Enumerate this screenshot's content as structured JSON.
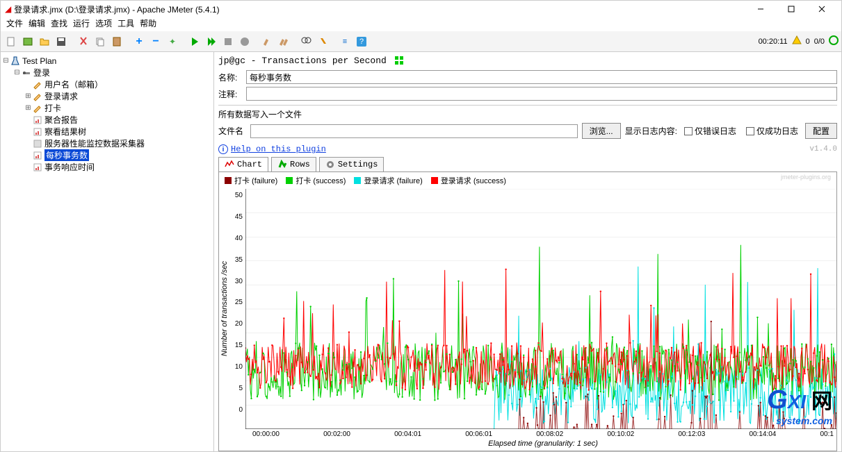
{
  "window": {
    "title": "登录请求.jmx (D:\\登录请求.jmx) - Apache JMeter (5.4.1)"
  },
  "menu": [
    "文件",
    "编辑",
    "查找",
    "运行",
    "选项",
    "工具",
    "帮助"
  ],
  "toolbar": {
    "timer": "00:20:11",
    "warn_count": "0",
    "status": "0/0"
  },
  "tree": {
    "items": [
      {
        "depth": 0,
        "toggle": "⊟",
        "icon": "flask",
        "label": "Test Plan"
      },
      {
        "depth": 1,
        "toggle": "⊟",
        "icon": "step",
        "label": "登录"
      },
      {
        "depth": 2,
        "toggle": "",
        "icon": "pencil",
        "label": "用户名（邮箱）"
      },
      {
        "depth": 2,
        "toggle": "⊞",
        "icon": "pencil",
        "label": "登录请求"
      },
      {
        "depth": 2,
        "toggle": "⊞",
        "icon": "pencil",
        "label": "打卡"
      },
      {
        "depth": 2,
        "toggle": "",
        "icon": "report",
        "label": "聚合报告"
      },
      {
        "depth": 2,
        "toggle": "",
        "icon": "report",
        "label": "察看结果树"
      },
      {
        "depth": 2,
        "toggle": "",
        "icon": "grey",
        "label": "服务器性能监控数据采集器"
      },
      {
        "depth": 2,
        "toggle": "",
        "icon": "report",
        "label": "每秒事务数",
        "selected": true
      },
      {
        "depth": 2,
        "toggle": "",
        "icon": "report",
        "label": "事务响应时间"
      }
    ]
  },
  "main": {
    "header": "jp@gc - Transactions per Second",
    "name_label": "名称:",
    "name_value": "每秒事务数",
    "comment_label": "注释:",
    "comment_value": "",
    "file_section_title": "所有数据写入一个文件",
    "file_label": "文件名",
    "file_value": "",
    "browse_btn": "浏览...",
    "show_log_label": "显示日志内容:",
    "only_error": "仅错误日志",
    "only_success": "仅成功日志",
    "config_btn": "配置",
    "help_link": "Help on this plugin",
    "version": "v1.4.0",
    "tabs": {
      "chart": "Chart",
      "rows": "Rows",
      "settings": "Settings"
    }
  },
  "chart": {
    "legend": [
      {
        "color": "#8B0000",
        "label": "打卡 (failure)"
      },
      {
        "color": "#00D000",
        "label": "打卡 (success)"
      },
      {
        "color": "#00E0E0",
        "label": "登录请求 (failure)"
      },
      {
        "color": "#FF0000",
        "label": "登录请求 (success)"
      }
    ],
    "watermark": "jmeter-plugins.org",
    "y_label": "Number of transactions /sec",
    "x_label": "Elapsed time (granularity: 1 sec)",
    "y_ticks": [
      "50",
      "45",
      "40",
      "35",
      "30",
      "25",
      "20",
      "15",
      "10",
      "5",
      "0"
    ],
    "x_ticks": [
      "00:00:00",
      "00:02:00",
      "00:04:01",
      "00:06:01",
      "00:08:02",
      "00:10:02",
      "00:12:03",
      "00:14:04",
      "00:1"
    ],
    "ylim": [
      0,
      50
    ],
    "series_colors": {
      "daka_fail": "#8B0000",
      "daka_succ": "#00D000",
      "login_fail": "#00E0E0",
      "login_succ": "#FF0000"
    },
    "background": "#ffffff",
    "grid_color": "#e0e0e0"
  },
  "brand": {
    "text1": "G",
    "text2": "XI",
    "text3": "网",
    "sub": "system.com"
  }
}
